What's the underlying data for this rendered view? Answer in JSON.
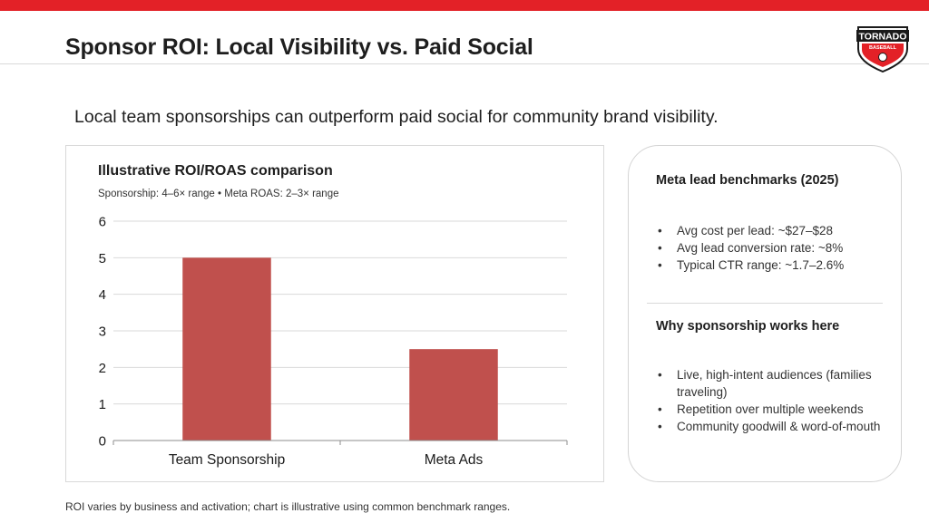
{
  "slide": {
    "title": "Sponsor ROI: Local Visibility vs. Paid Social",
    "subtitle": "Local team sponsorships can outperform paid social for community brand visibility.",
    "footnote": "ROI varies by business and activation; chart is illustrative using common benchmark ranges.",
    "logo": {
      "text_top": "TORNADO",
      "text_bottom": "BASEBALL",
      "colors": {
        "red": "#e32127",
        "black": "#1a1a1a",
        "white": "#ffffff"
      }
    }
  },
  "chart_data": {
    "type": "bar",
    "title": "Illustrative ROI/ROAS comparison",
    "subtitle": "Sponsorship: 4–6× range • Meta ROAS: 2–3× range",
    "categories": [
      "Team Sponsorship",
      "Meta Ads"
    ],
    "values": [
      5,
      2.5
    ],
    "ylim": [
      0,
      6
    ],
    "yticks": [
      0,
      1,
      2,
      3,
      4,
      5,
      6
    ],
    "xlabel": "",
    "ylabel": "",
    "grid": true,
    "bar_color": "#c0504d"
  },
  "side_panel": {
    "benchmarks": {
      "heading": "Meta lead benchmarks (2025)",
      "items": [
        "Avg cost per lead: ~$27–$28",
        "Avg lead conversion rate: ~8%",
        "Typical CTR range: ~1.7–2.6%"
      ]
    },
    "why": {
      "heading": "Why sponsorship works here",
      "items": [
        "Live, high-intent audiences (families traveling)",
        "Repetition over multiple weekends",
        "Community goodwill & word-of-mouth"
      ]
    }
  }
}
